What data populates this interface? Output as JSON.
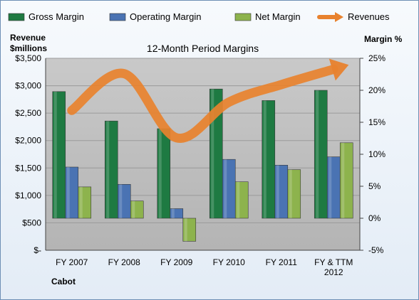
{
  "chart_data": {
    "type": "bar",
    "title": "12-Month Period Margins",
    "company": "Cabot",
    "left_axis_title": [
      "Revenue",
      "$millions"
    ],
    "right_axis_title": "Margin %",
    "categories": [
      [
        "FY 2007"
      ],
      [
        "FY 2008"
      ],
      [
        "FY 2009"
      ],
      [
        "FY 2010"
      ],
      [
        "FY 2011"
      ],
      [
        "FY & TTM",
        "2012"
      ]
    ],
    "left_ticks": [
      "$3,500",
      "$3,000",
      "$2,500",
      "$2,000",
      "$1,500",
      "$1,000",
      "$500",
      "$-"
    ],
    "right_ticks": [
      "25%",
      "20%",
      "15%",
      "10%",
      "5%",
      "0%",
      "-5%"
    ],
    "ylim_right": [
      -5,
      25
    ],
    "ylim_left": [
      0,
      3500
    ],
    "series": [
      {
        "name": "Gross Margin",
        "color": "#1e7a42",
        "values": [
          19.8,
          15.2,
          14.0,
          20.2,
          18.4,
          20.0
        ]
      },
      {
        "name": "Operating Margin",
        "color": "#4a73b3",
        "values": [
          8.0,
          5.3,
          1.5,
          9.2,
          8.3,
          9.6
        ]
      },
      {
        "name": "Net Margin",
        "color": "#8db34d",
        "values": [
          4.9,
          2.7,
          -3.6,
          5.7,
          7.6,
          11.8
        ]
      }
    ],
    "line_series": {
      "name": "Revenues",
      "color": "#e8822e",
      "values": [
        2550,
        3220,
        2050,
        2700,
        3020,
        3300
      ]
    },
    "grid": true,
    "legend": "top"
  }
}
